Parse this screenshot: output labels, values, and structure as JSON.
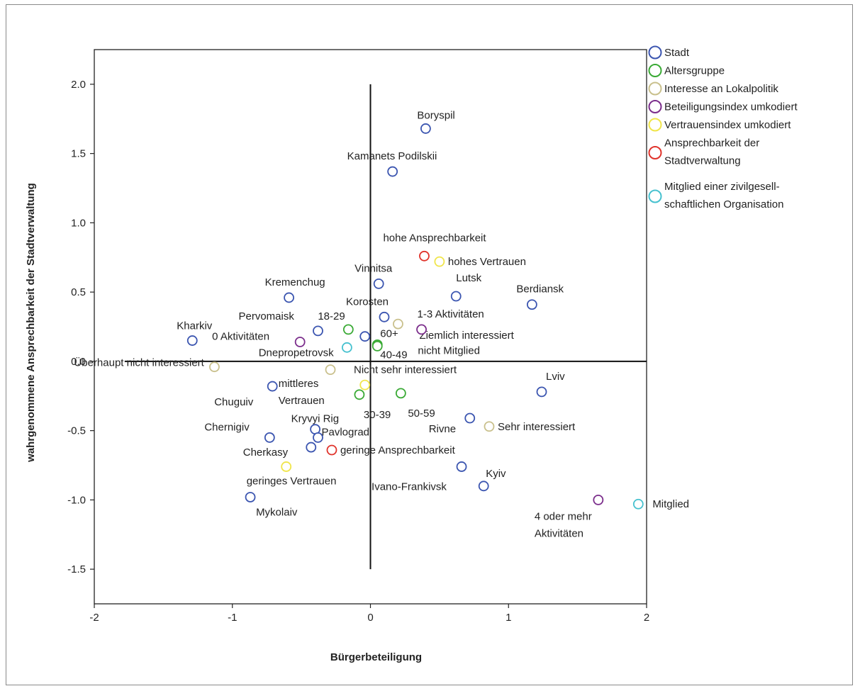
{
  "chart_data": {
    "type": "scatter",
    "title": "",
    "xlabel": "Bürgerbeteiligung",
    "ylabel": "wahrgenommene Ansprechbarkeit der Stadtverwaltung",
    "xlim": [
      -2,
      2
    ],
    "ylim": [
      -1.75,
      2.25
    ],
    "xticks": [
      "-2",
      "-1",
      "0",
      "1",
      "2"
    ],
    "yticks": [
      "2.0",
      "1.5",
      "1.0",
      "0.5",
      "0.0",
      "-0.5",
      "-1.0",
      "-1.5"
    ],
    "grid": false,
    "legend_position": "right",
    "series": [
      {
        "name": "Stadt",
        "color": "#3b55b0",
        "points": [
          {
            "label": "Boryspil",
            "x": 0.4,
            "y": 1.68
          },
          {
            "label": "Kamanets Podilskii",
            "x": 0.16,
            "y": 1.37
          },
          {
            "label": "Vinnitsa",
            "x": 0.06,
            "y": 0.56
          },
          {
            "label": "Lutsk",
            "x": 0.62,
            "y": 0.47
          },
          {
            "label": "Berdiansk",
            "x": 1.17,
            "y": 0.41
          },
          {
            "label": "Kremenchug",
            "x": -0.59,
            "y": 0.46
          },
          {
            "label": "Korosten",
            "x": 0.1,
            "y": 0.32
          },
          {
            "label": "Pervomaisk",
            "x": -0.38,
            "y": 0.22
          },
          {
            "label": "Kharkiv",
            "x": -1.29,
            "y": 0.15
          },
          {
            "label": "Dnepropetrovsk",
            "x": -0.04,
            "y": 0.18
          },
          {
            "label": "Lviv",
            "x": 1.24,
            "y": -0.22
          },
          {
            "label": "Chuguiv",
            "x": -0.71,
            "y": -0.18
          },
          {
            "label": "Rivne",
            "x": 0.72,
            "y": -0.41
          },
          {
            "label": "Kryvyi Rig",
            "x": -0.4,
            "y": -0.49
          },
          {
            "label": "Pavlograd",
            "x": -0.38,
            "y": -0.55
          },
          {
            "label": "Chernigiv",
            "x": -0.73,
            "y": -0.55
          },
          {
            "label": "Cherkasy",
            "x": -0.43,
            "y": -0.62
          },
          {
            "label": "Ivano-Frankivsk",
            "x": 0.66,
            "y": -0.76
          },
          {
            "label": "Kyiv",
            "x": 0.82,
            "y": -0.9
          },
          {
            "label": "Mykolaiv",
            "x": -0.87,
            "y": -0.98
          }
        ]
      },
      {
        "name": "Altersgruppe",
        "color": "#3aaa35",
        "points": [
          {
            "label": "18-29",
            "x": -0.16,
            "y": 0.23
          },
          {
            "label": "60+",
            "x": 0.05,
            "y": 0.12
          },
          {
            "label": "40-49",
            "x": 0.05,
            "y": 0.11
          },
          {
            "label": "30-39",
            "x": -0.08,
            "y": -0.24
          },
          {
            "label": "50-59",
            "x": 0.22,
            "y": -0.23
          }
        ]
      },
      {
        "name": "Interesse an Lokalpolitik",
        "color": "#c9c08c",
        "points": [
          {
            "label": "Ziemlich interessiert",
            "x": 0.2,
            "y": 0.27
          },
          {
            "label": "Überhaupt nicht interessiert",
            "x": -1.13,
            "y": -0.04
          },
          {
            "label": "Nicht sehr interessiert",
            "x": -0.29,
            "y": -0.06
          },
          {
            "label": "Sehr interessiert",
            "x": 0.86,
            "y": -0.47
          }
        ]
      },
      {
        "name": "Beteiligungsindex umkodiert",
        "color": "#7b2d8b",
        "points": [
          {
            "label": "1-3 Aktivitäten",
            "x": 0.37,
            "y": 0.23
          },
          {
            "label": "0 Aktivitäten",
            "x": -0.51,
            "y": 0.14
          },
          {
            "label": "4 oder mehr Aktivitäten",
            "x": 1.65,
            "y": -1.0
          }
        ]
      },
      {
        "name": "Vertrauensindex umkodiert",
        "color": "#f0e54a",
        "points": [
          {
            "label": "hohes Vertrauen",
            "x": 0.5,
            "y": 0.72
          },
          {
            "label": "mittleres Vertrauen",
            "x": -0.04,
            "y": -0.17
          },
          {
            "label": "geringes Vertrauen",
            "x": -0.61,
            "y": -0.76
          }
        ]
      },
      {
        "name": "Ansprechbarkeit der Stadtverwaltung",
        "color": "#e0332b",
        "points": [
          {
            "label": "hohe Ansprechbarkeit",
            "x": 0.39,
            "y": 0.76
          },
          {
            "label": "geringe Ansprechbarkeit",
            "x": -0.28,
            "y": -0.64
          }
        ]
      },
      {
        "name": "Mitglied einer zivilgesellschaftlichen Organisation",
        "color": "#46c1cf",
        "points": [
          {
            "label": "nicht Mitglied",
            "x": -0.17,
            "y": 0.1
          },
          {
            "label": "Mitglied",
            "x": 1.94,
            "y": -1.03
          }
        ]
      }
    ]
  },
  "legend": {
    "items": [
      {
        "lines": [
          "Stadt"
        ],
        "color": "#3b55b0"
      },
      {
        "lines": [
          "Altersgruppe"
        ],
        "color": "#3aaa35"
      },
      {
        "lines": [
          "Interesse an Lokalpolitik"
        ],
        "color": "#c9c08c"
      },
      {
        "lines": [
          "Beteiligungsindex umkodiert"
        ],
        "color": "#7b2d8b"
      },
      {
        "lines": [
          "Vertrauensindex umkodiert"
        ],
        "color": "#f0e54a"
      },
      {
        "lines": [
          "Ansprechbarkeit der",
          "Stadtverwaltung"
        ],
        "color": "#e0332b"
      },
      {
        "lines": [
          "Mitglied einer zivilgesell-",
          "schaftlichen Organisation"
        ],
        "color": "#46c1cf"
      }
    ]
  }
}
